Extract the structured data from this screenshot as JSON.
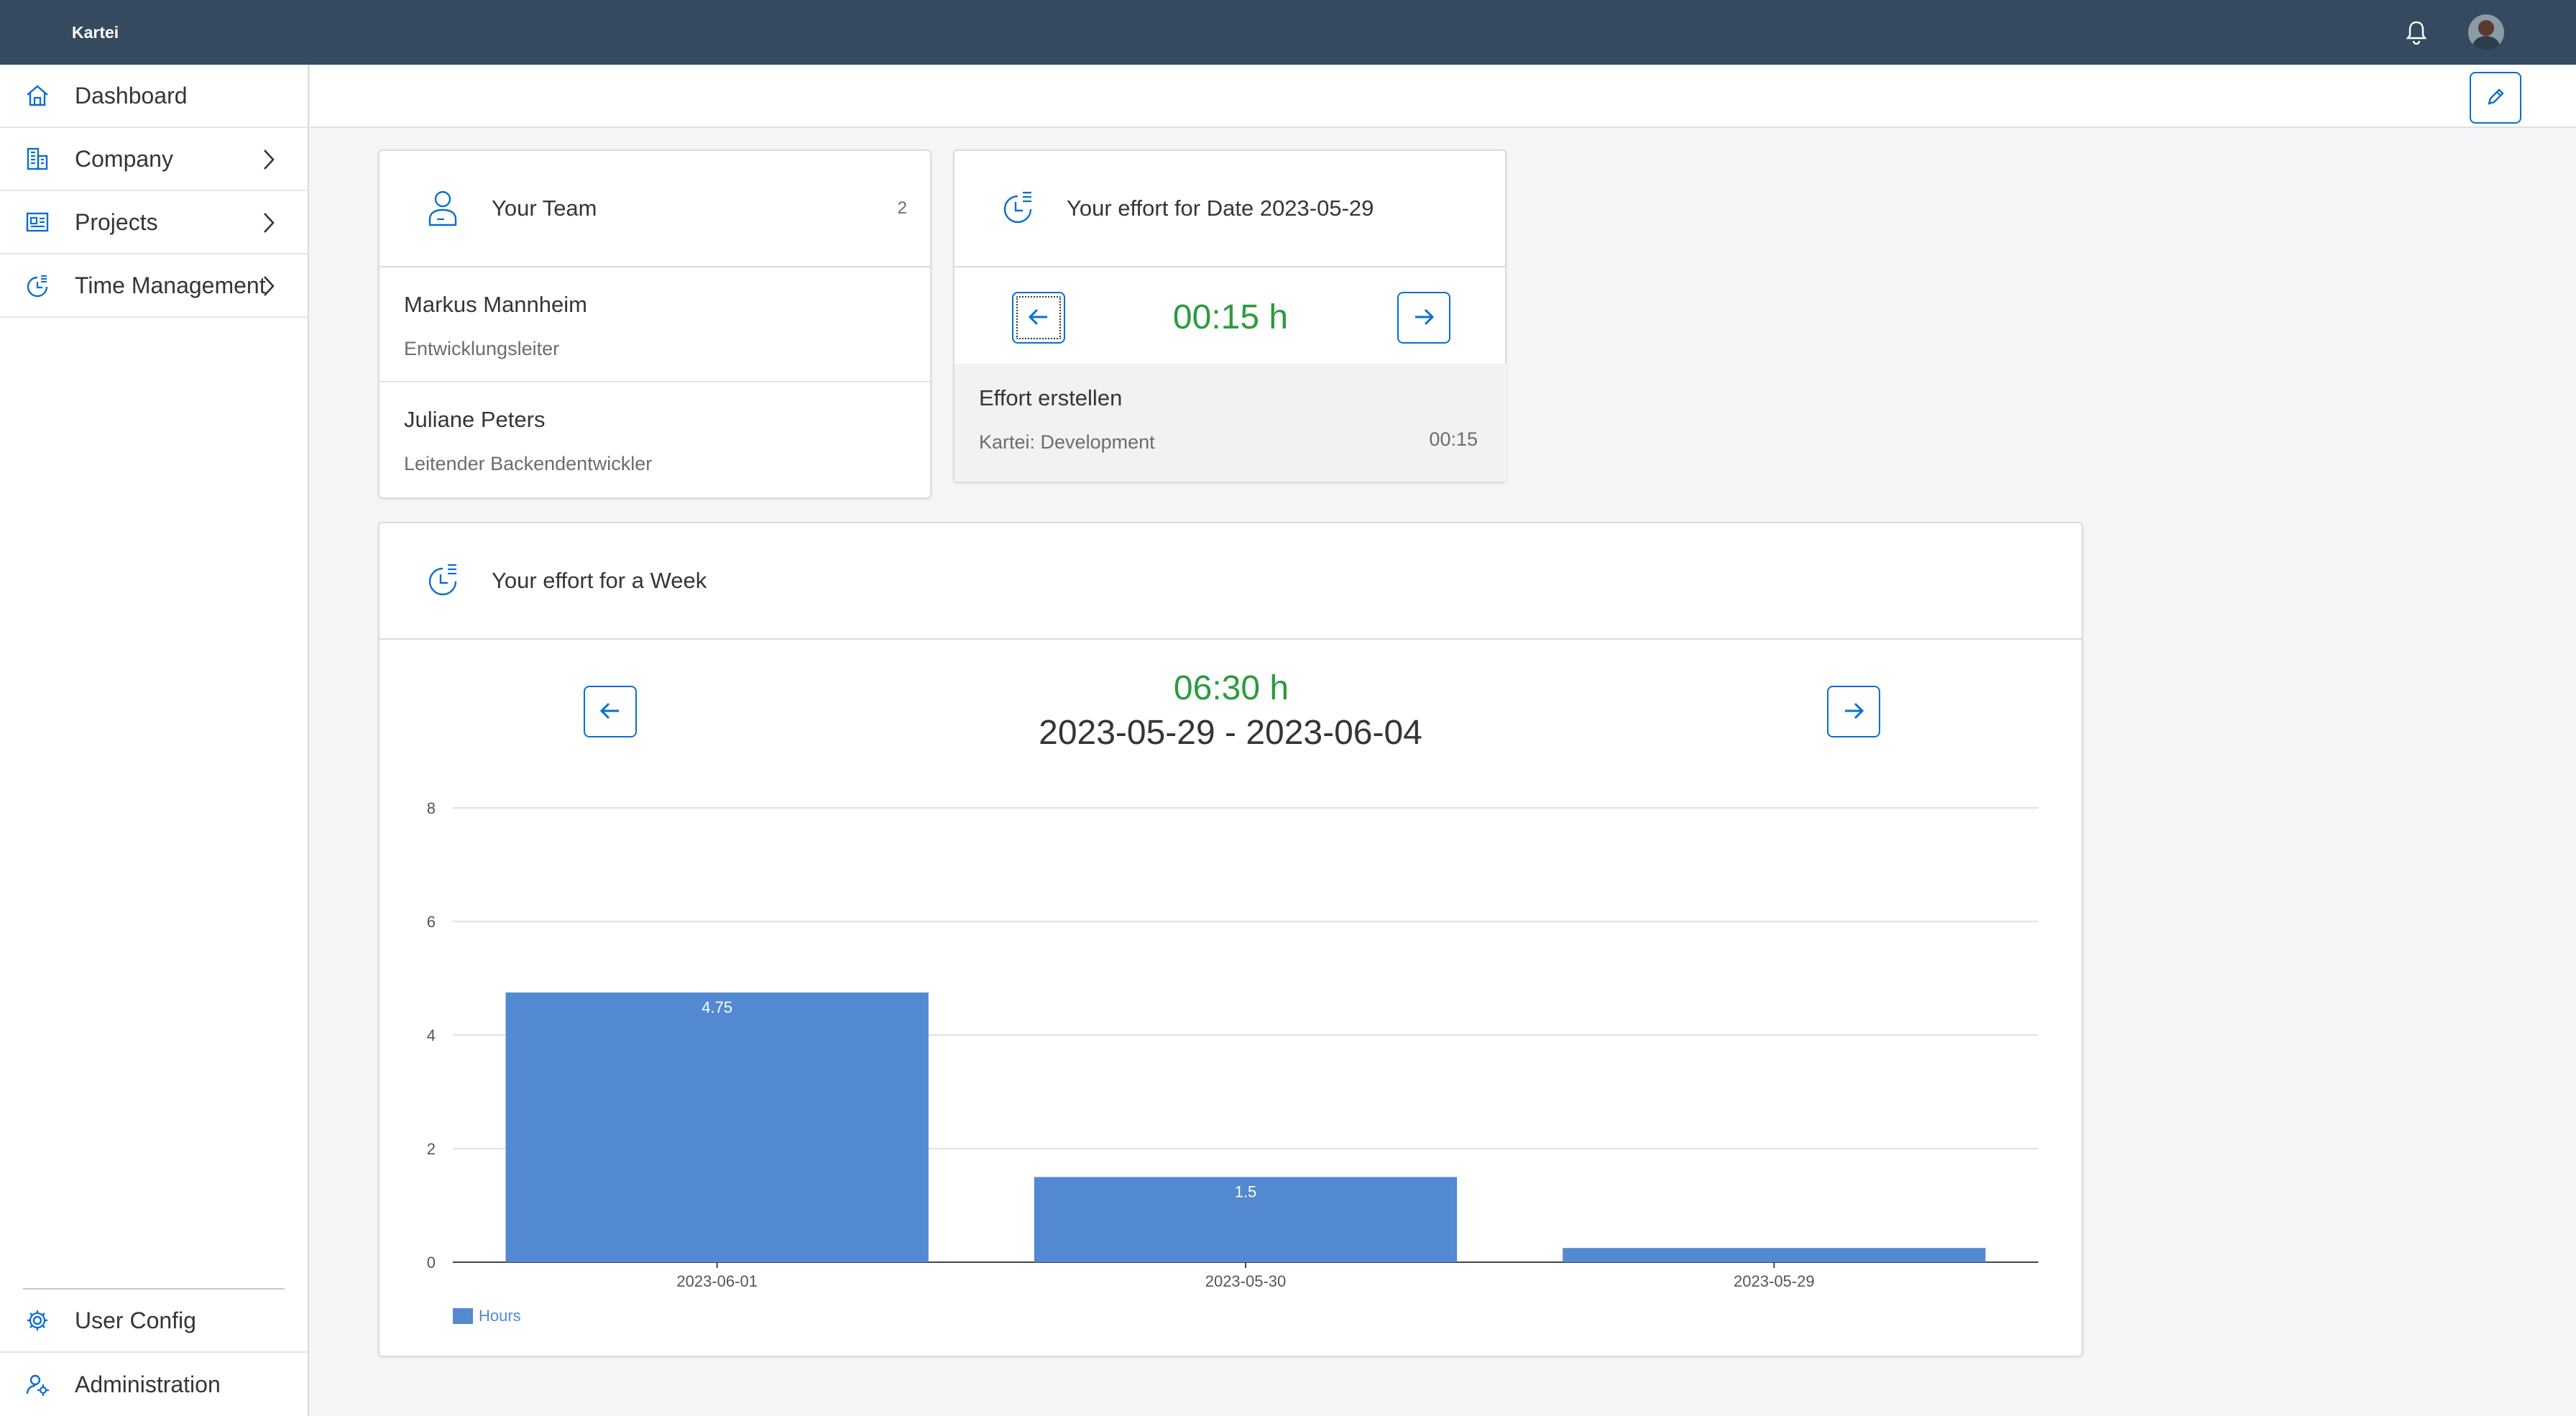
{
  "shell": {
    "app_title": "Kartei"
  },
  "sidebar": {
    "items": [
      {
        "label": "Dashboard",
        "has_chevron": false
      },
      {
        "label": "Company",
        "has_chevron": true
      },
      {
        "label": "Projects",
        "has_chevron": true
      },
      {
        "label": "Time Management",
        "has_chevron": true
      }
    ],
    "bottom_items": [
      {
        "label": "User Config"
      },
      {
        "label": "Administration"
      }
    ]
  },
  "team_card": {
    "title": "Your Team",
    "count": "2",
    "members": [
      {
        "name": "Markus Mannheim",
        "role": "Entwicklungsleiter"
      },
      {
        "name": "Juliane Peters",
        "role": "Leitender Backendentwickler"
      }
    ]
  },
  "day_card": {
    "title": "Your effort for Date 2023-05-29",
    "hours": "00:15 h",
    "entry": {
      "title": "Effort erstellen",
      "subtitle": "Kartei: Development",
      "time": "00:15"
    }
  },
  "week_card": {
    "title": "Your effort for a Week",
    "hours": "06:30 h",
    "range": "2023-05-29 - 2023-06-04"
  },
  "colors": {
    "accent": "#0a6ed1",
    "shell": "#354a5f",
    "hours_green": "#2b9b3f",
    "bar": "#5289d1"
  },
  "chart_data": {
    "type": "bar",
    "categories": [
      "2023-06-01",
      "2023-05-30",
      "2023-05-29"
    ],
    "series": [
      {
        "name": "Hours",
        "values": [
          4.75,
          1.5,
          0.25
        ]
      }
    ],
    "data_labels": [
      "4.75",
      "1.5",
      ""
    ],
    "yticks": [
      "0",
      "2",
      "4",
      "6",
      "8"
    ],
    "ylim": [
      0,
      8
    ],
    "grid": true,
    "legend_position": "bottom-left"
  }
}
